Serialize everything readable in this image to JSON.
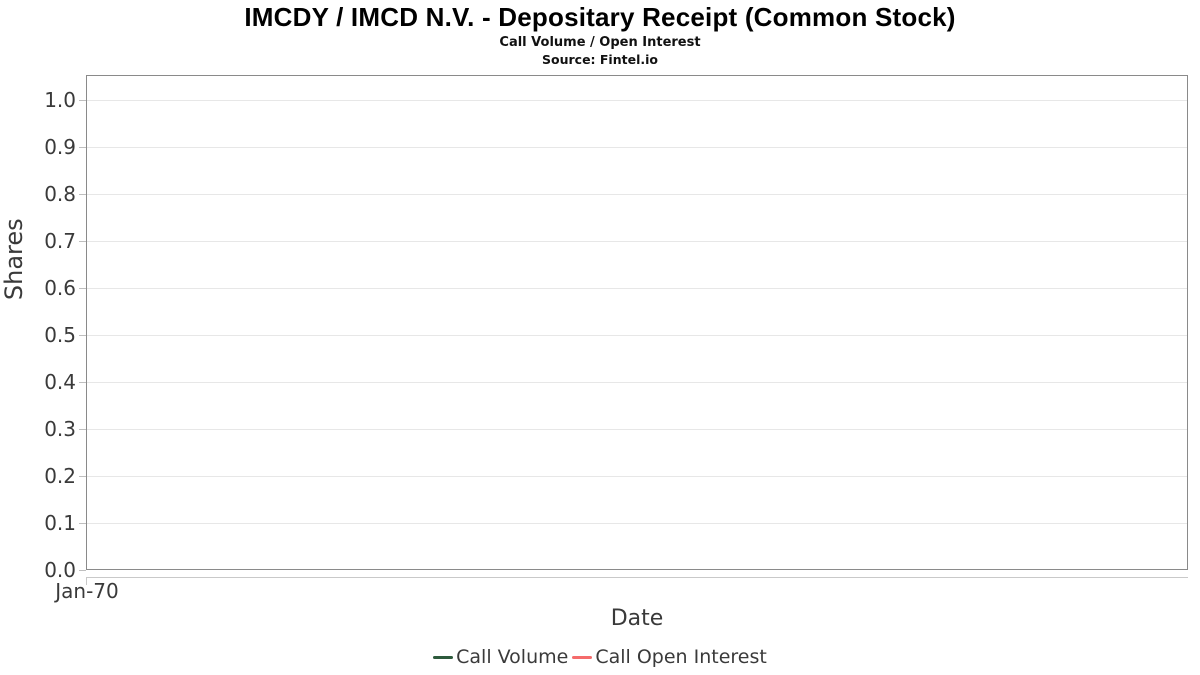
{
  "header": {
    "title": "IMCDY / IMCD N.V. - Depositary Receipt (Common Stock)",
    "subtitle": "Call Volume / Open Interest",
    "source": "Source: Fintel.io"
  },
  "chart_data": {
    "type": "line",
    "title": "IMCDY / IMCD N.V. - Depositary Receipt (Common Stock)",
    "subtitle": "Call Volume / Open Interest",
    "source": "Source: Fintel.io",
    "xlabel": "Date",
    "ylabel": "Shares",
    "ylim": [
      0.0,
      1.05
    ],
    "yticks": [
      "0.0",
      "0.1",
      "0.2",
      "0.3",
      "0.4",
      "0.5",
      "0.6",
      "0.7",
      "0.8",
      "0.9",
      "1.0"
    ],
    "xticks": [
      "Jan-70"
    ],
    "grid": "horizontal-only",
    "legend_position": "bottom-center",
    "series": [
      {
        "name": "Call Volume",
        "color": "#2d5a3c",
        "x": [],
        "values": []
      },
      {
        "name": "Call Open Interest",
        "color": "#f56b6b",
        "x": [],
        "values": []
      }
    ]
  }
}
